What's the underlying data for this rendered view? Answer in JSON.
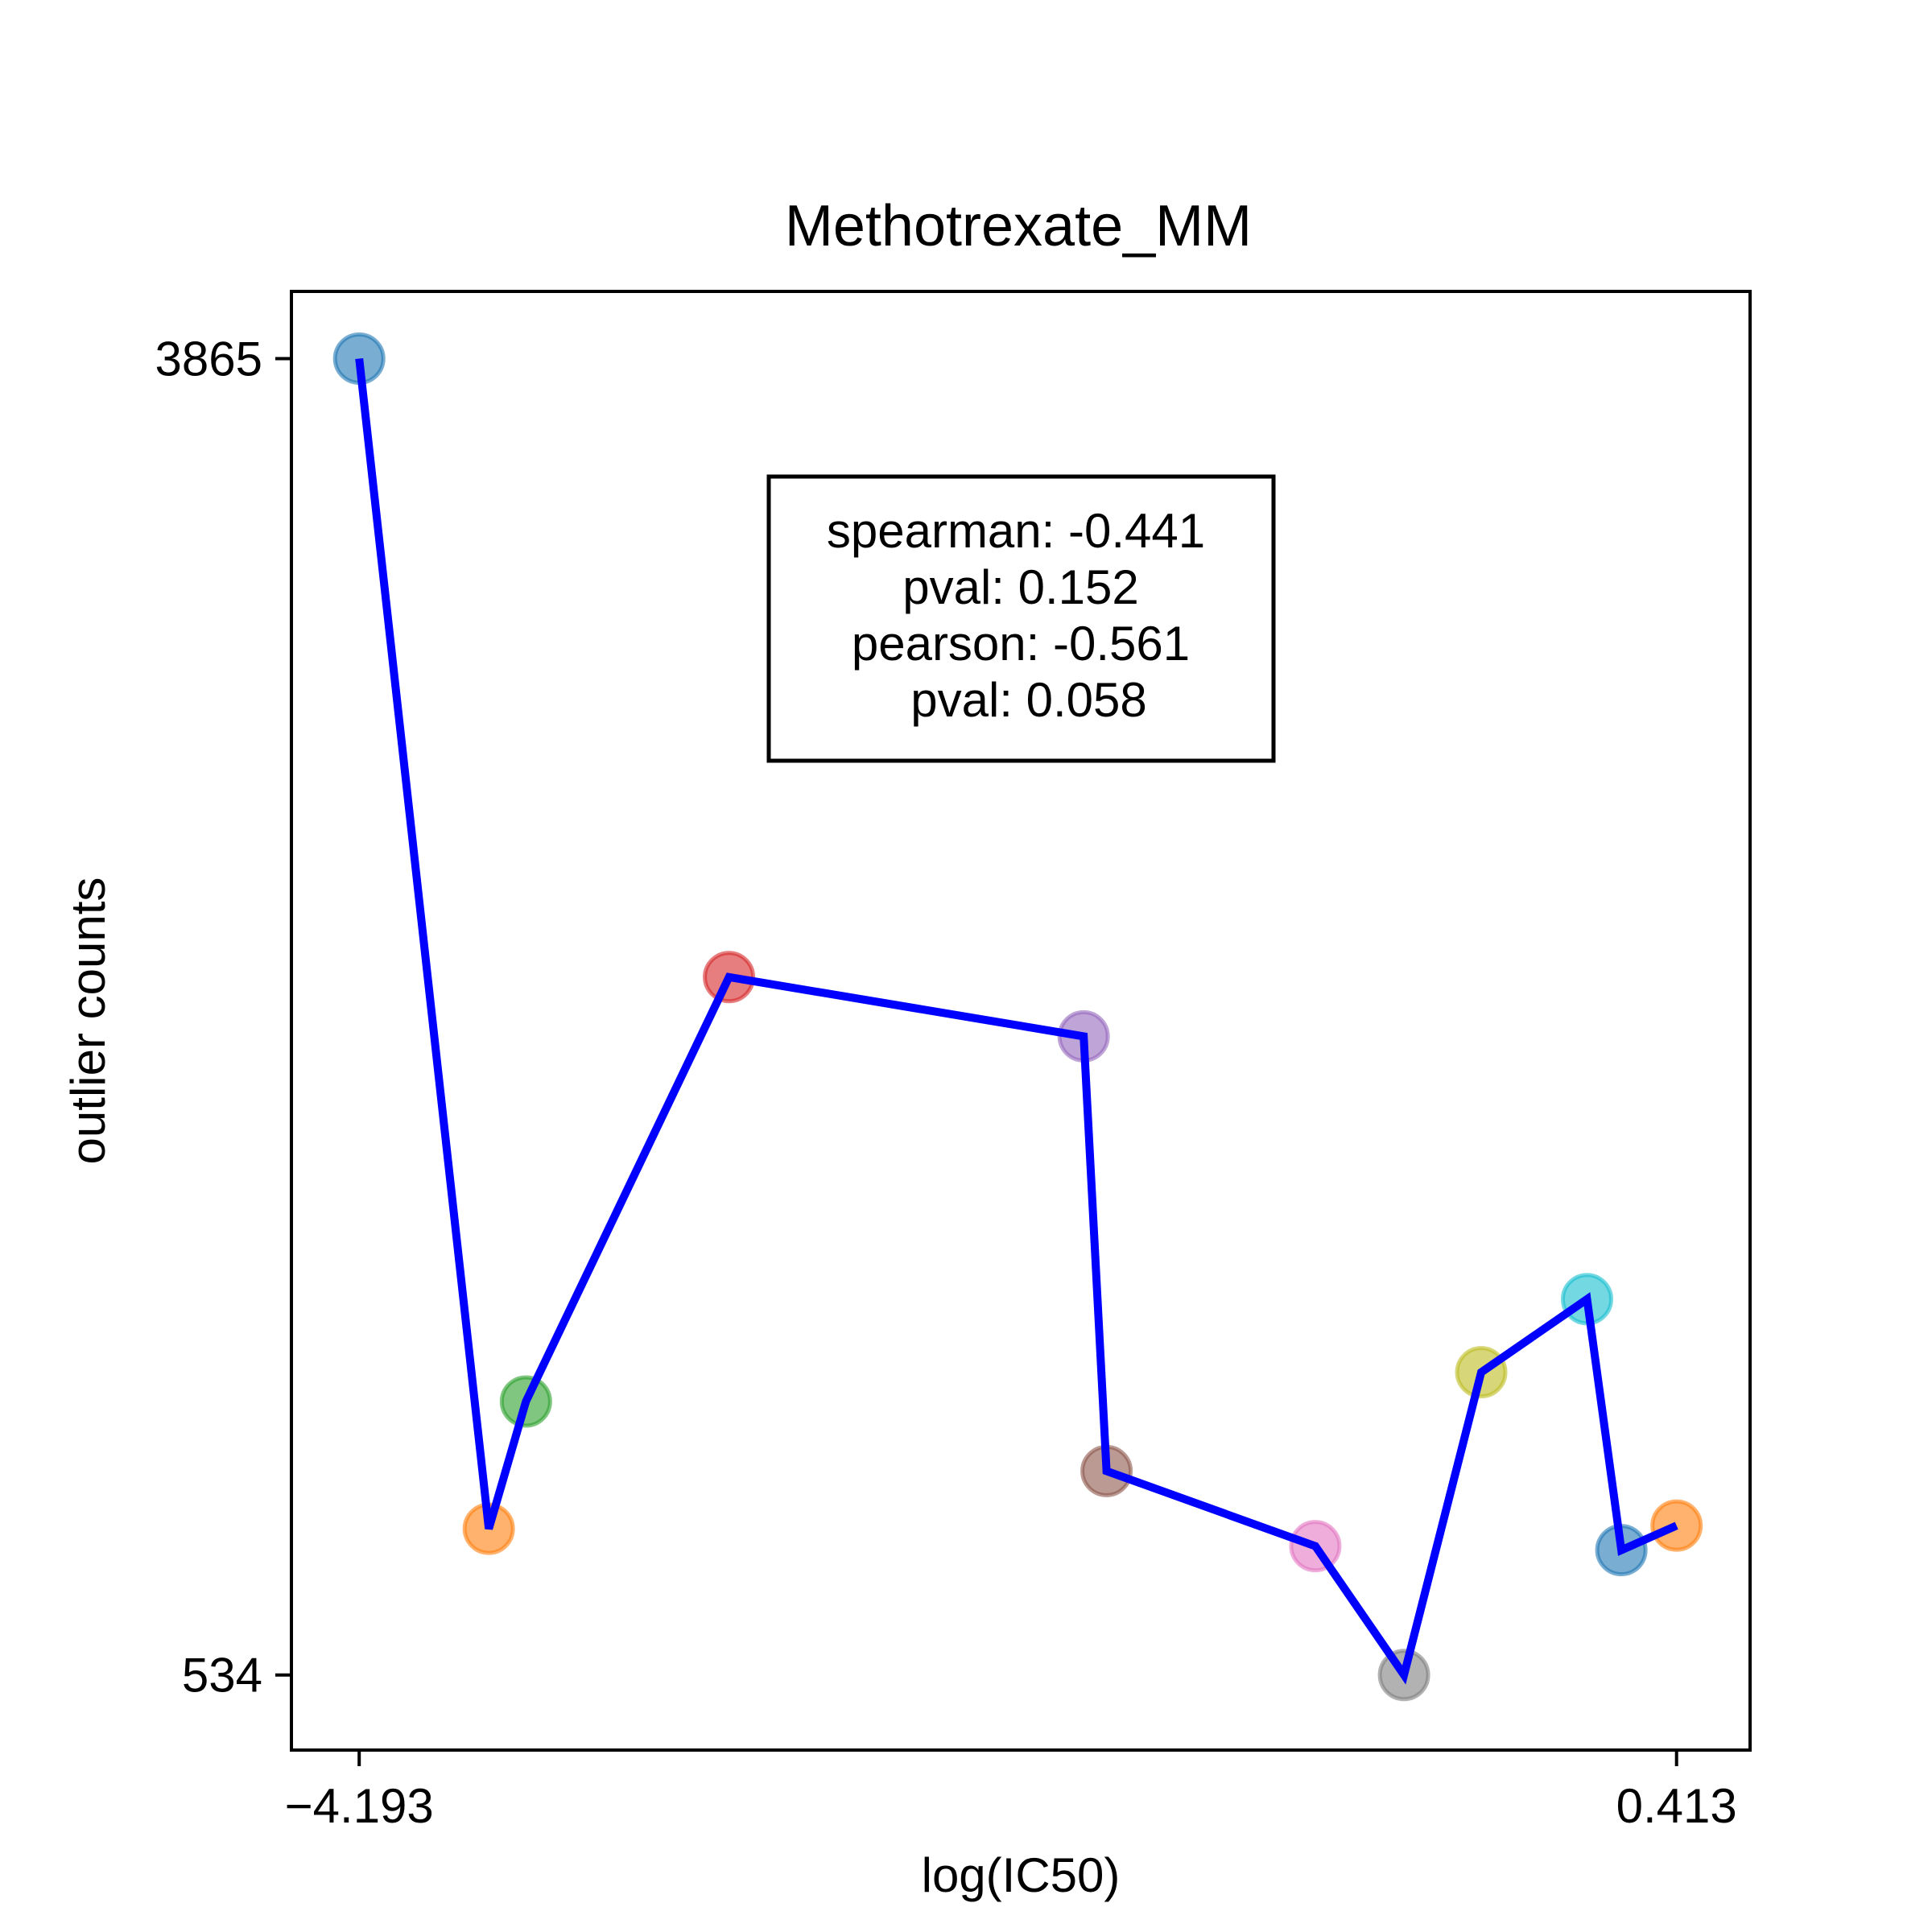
{
  "chart_data": {
    "type": "line",
    "title": "Methotrexate_MM",
    "xlabel": "log(IC50)",
    "ylabel": "outlier counts",
    "x_ticks": [
      "−4.193",
      "0.413"
    ],
    "y_ticks": [
      "3865",
      "534"
    ],
    "xlim": [
      -4.43,
      0.67
    ],
    "ylim": [
      344,
      4035
    ],
    "grid": false,
    "annotation_lines": [
      "spearman: -0.441",
      "pval: 0.152",
      "pearson: -0.561",
      "pval: 0.058"
    ],
    "points": [
      {
        "x": -4.193,
        "y": 3865,
        "color": "#1f77b4"
      },
      {
        "x": -3.74,
        "y": 904,
        "color": "#ff7f0e"
      },
      {
        "x": -3.61,
        "y": 1226,
        "color": "#2ca02c"
      },
      {
        "x": -2.9,
        "y": 2300,
        "color": "#d62728"
      },
      {
        "x": -1.66,
        "y": 2150,
        "color": "#9467bd"
      },
      {
        "x": -1.58,
        "y": 1050,
        "color": "#8c564b"
      },
      {
        "x": -0.85,
        "y": 860,
        "color": "#e377c2"
      },
      {
        "x": -0.54,
        "y": 534,
        "color": "#7f7f7f"
      },
      {
        "x": -0.27,
        "y": 1300,
        "color": "#bcbd22"
      },
      {
        "x": 0.1,
        "y": 1485,
        "color": "#17becf"
      },
      {
        "x": 0.22,
        "y": 850,
        "color": "#1f77b4"
      },
      {
        "x": 0.413,
        "y": 912,
        "color": "#ff7f0e"
      }
    ],
    "line_color": "#0000ff"
  }
}
